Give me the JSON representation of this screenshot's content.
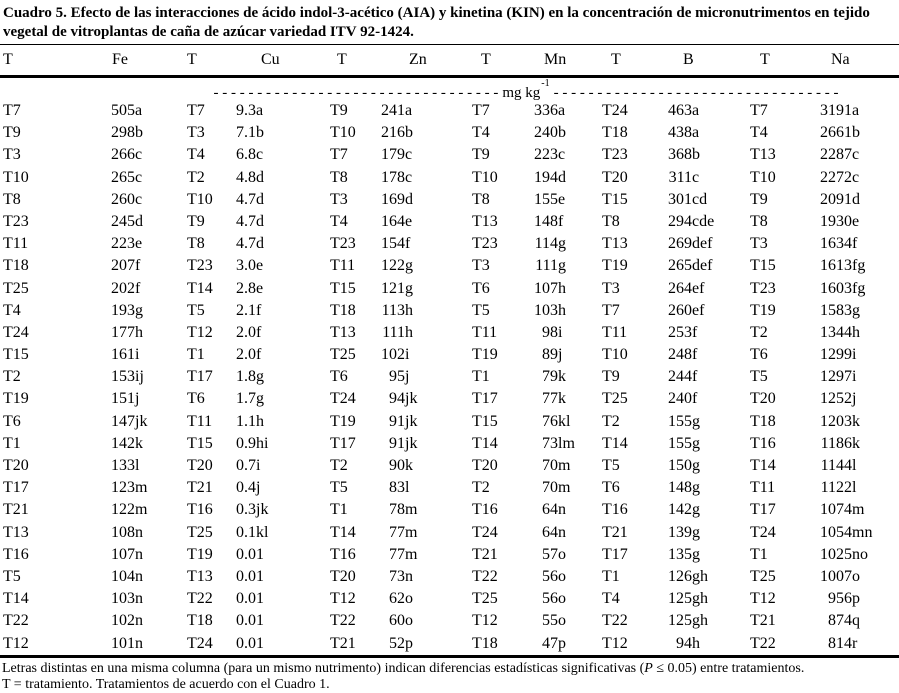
{
  "title": "Cuadro 5. Efecto de las interacciones de ácido indol-3-acético (AIA) y kinetina (KIN) en la concentración de micronutrimentos en tejido vegetal de vitroplantas de caña de azúcar variedad ITV 92-1424.",
  "table": {
    "headers": [
      "T",
      "Fe",
      "T",
      "Cu",
      "T",
      "Zn",
      "T",
      "Mn",
      "T",
      "B",
      "T",
      "Na"
    ],
    "unit_row": {
      "dashes_left": "- - - - - - - - - - - - - - - - - - - - - - - - - - - - - - - - -",
      "unit": "mg kg",
      "exponent": "-1",
      "dashes_right": "- - - - - - - - - - - - - - - - - - - - - - - - - - - - - - - - -"
    },
    "rows": [
      [
        "T7",
        "505a",
        "T7",
        "9.3a",
        "T9",
        "241a",
        "T7",
        "336a",
        "T24",
        "463a",
        "T7",
        "3191a"
      ],
      [
        "T9",
        "298b",
        "T3",
        "7.1b",
        "T10",
        "216b",
        "T4",
        "240b",
        "T18",
        "438a",
        "T4",
        "2661b"
      ],
      [
        "T3",
        "266c",
        "T4",
        "6.8c",
        "T7",
        "179c",
        "T9",
        "223c",
        "T23",
        "368b",
        "T13",
        "2287c"
      ],
      [
        "T10",
        "265c",
        "T2",
        "4.8d",
        "T8",
        "178c",
        "T10",
        "194d",
        "T20",
        "311c",
        "T10",
        "2272c"
      ],
      [
        "T8",
        "260c",
        "T10",
        "4.7d",
        "T3",
        "169d",
        "T8",
        "155e",
        "T15",
        "301cd",
        "T9",
        "2091d"
      ],
      [
        "T23",
        "245d",
        "T9",
        "4.7d",
        "T4",
        "164e",
        "T13",
        "148f",
        "T8",
        "294cde",
        "T8",
        "1930e"
      ],
      [
        "T11",
        "223e",
        "T8",
        "4.7d",
        "T23",
        "154f",
        "T23",
        "114g",
        "T13",
        "269def",
        "T3",
        "1634f"
      ],
      [
        "T18",
        "207f",
        "T23",
        "3.0e",
        "T11",
        "122g",
        "T3",
        "111g",
        "T19",
        "265def",
        "T15",
        "1613fg"
      ],
      [
        "T25",
        "202f",
        "T14",
        "2.8e",
        "T15",
        "121g",
        "T6",
        "107h",
        "T3",
        "264ef",
        "T23",
        "1603fg"
      ],
      [
        "T4",
        "193g",
        "T5",
        "2.1f",
        "T18",
        "113h",
        "T5",
        "103h",
        "T7",
        "260ef",
        "T19",
        "1583g"
      ],
      [
        "T24",
        "177h",
        "T12",
        "2.0f",
        "T13",
        "111h",
        "T11",
        "98i",
        "T11",
        "253f",
        "T2",
        "1344h"
      ],
      [
        "T15",
        "161i",
        "T1",
        "2.0f",
        "T25",
        "102i",
        "T19",
        "89j",
        "T10",
        "248f",
        "T6",
        "1299i"
      ],
      [
        "T2",
        "153ij",
        "T17",
        "1.8g",
        "T6",
        "95j",
        "T1",
        "79k",
        "T9",
        "244f",
        "T5",
        "1297i"
      ],
      [
        "T19",
        "151j",
        "T6",
        "1.7g",
        "T24",
        "94jk",
        "T17",
        "77k",
        "T25",
        "240f",
        "T20",
        "1252j"
      ],
      [
        "T6",
        "147jk",
        "T11",
        "1.1h",
        "T19",
        "91jk",
        "T15",
        "76kl",
        "T2",
        "155g",
        "T18",
        "1203k"
      ],
      [
        "T1",
        "142k",
        "T15",
        "0.9hi",
        "T17",
        "91jk",
        "T14",
        "73lm",
        "T14",
        "155g",
        "T16",
        "1186k"
      ],
      [
        "T20",
        "133l",
        "T20",
        "0.7i",
        "T2",
        "90k",
        "T20",
        "70m",
        "T5",
        "150g",
        "T14",
        "1144l"
      ],
      [
        "T17",
        "123m",
        "T21",
        "0.4j",
        "T5",
        "83l",
        "T2",
        "70m",
        "T6",
        "148g",
        "T11",
        "1122l"
      ],
      [
        "T21",
        "122m",
        "T16",
        "0.3jk",
        "T1",
        "78m",
        "T16",
        "64n",
        "T16",
        "142g",
        "T17",
        "1074m"
      ],
      [
        "T13",
        "108n",
        "T25",
        "0.1kl",
        "T14",
        "77m",
        "T24",
        "64n",
        "T21",
        "139g",
        "T24",
        "1054mn"
      ],
      [
        "T16",
        "107n",
        "T19",
        "0.01",
        "T16",
        "77m",
        "T21",
        "57o",
        "T17",
        "135g",
        "T1",
        "1025no"
      ],
      [
        "T5",
        "104n",
        "T13",
        "0.01",
        "T20",
        "73n",
        "T22",
        "56o",
        "T1",
        "126gh",
        "T25",
        "1007o"
      ],
      [
        "T14",
        "103n",
        "T22",
        "0.01",
        "T12",
        "62o",
        "T25",
        "56o",
        "T4",
        "125gh",
        "T12",
        "956p"
      ],
      [
        "T22",
        "102n",
        "T18",
        "0.01",
        "T22",
        "60o",
        "T12",
        "55o",
        "T22",
        "125gh",
        "T21",
        "874q"
      ],
      [
        "T12",
        "101n",
        "T24",
        "0.01",
        "T21",
        "52p",
        "T18",
        "47p",
        "T12",
        "94h",
        "T22",
        "814r"
      ]
    ]
  },
  "footnotes": {
    "note1_pre": "Letras distintas en una misma columna (para un mismo nutrimento) indican diferencias estadísticas significativas (",
    "note1_italic": "P",
    "note1_post": " ≤ 0.05) entre tratamientos.",
    "note2": "T = tratamiento. Tratamientos de acuerdo con el Cuadro 1."
  }
}
